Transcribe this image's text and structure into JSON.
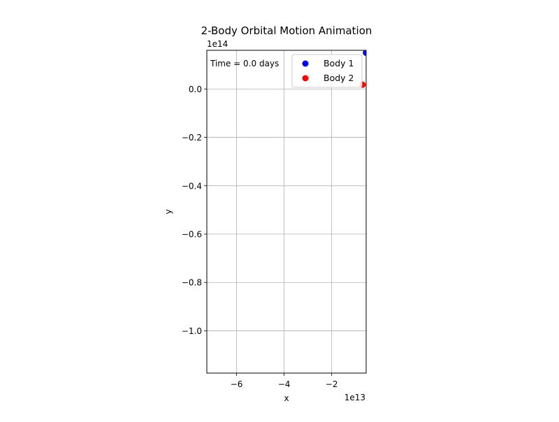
{
  "chart_data": {
    "type": "scatter",
    "title": "2-Body Orbital Motion Animation",
    "xlabel": "x",
    "ylabel": "y",
    "x_offset_text": "1e13",
    "y_offset_text": "1e14",
    "xlim": [
      -7.25,
      -0.55
    ],
    "ylim": [
      -1.175,
      0.16
    ],
    "x_ticks": [
      -6,
      -4,
      -2
    ],
    "x_tick_labels": [
      "−6",
      "−4",
      "−2"
    ],
    "y_ticks": [
      0.0,
      -0.2,
      -0.4,
      -0.6,
      -0.8,
      -1.0
    ],
    "y_tick_labels": [
      "0.0",
      "−0.2",
      "−0.4",
      "−0.6",
      "−0.8",
      "−1.0"
    ],
    "grid": true,
    "legend_position": "upper right",
    "annotation": "Time = 0.0 days",
    "series": [
      {
        "name": "Body 1",
        "color": "#0000ff",
        "points": [
          {
            "x": -0.56,
            "y": 0.15
          }
        ]
      },
      {
        "name": "Body 2",
        "color": "#ff0000",
        "points": [
          {
            "x": -0.7,
            "y": 0.018
          }
        ]
      }
    ],
    "colors": {
      "axis": "#000000",
      "grid": "#b0b0b0",
      "legend_border": "#cccccc"
    }
  }
}
